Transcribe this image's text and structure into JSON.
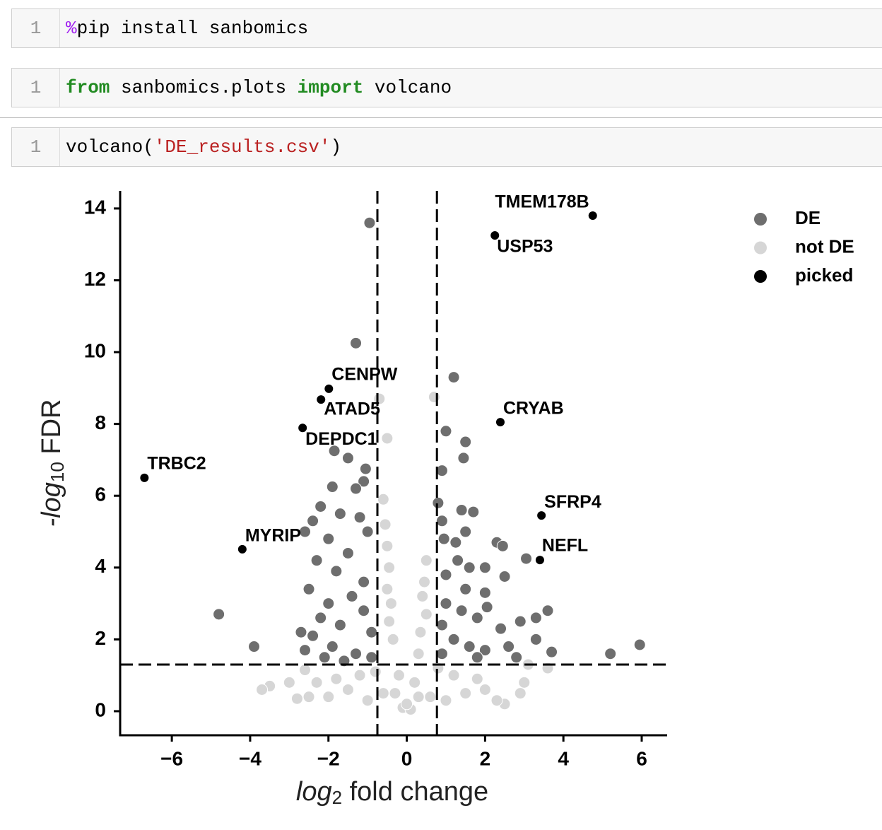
{
  "cells": [
    {
      "line_number": 1,
      "tokens": [
        {
          "text": "%",
          "style": "magic"
        },
        {
          "text": "pip install sanbomics",
          "style": "plain"
        }
      ]
    },
    {
      "line_number": 1,
      "tokens": [
        {
          "text": "from",
          "style": "keyword"
        },
        {
          "text": " sanbomics.plots ",
          "style": "plain"
        },
        {
          "text": "import",
          "style": "keyword"
        },
        {
          "text": " volcano",
          "style": "plain"
        }
      ]
    },
    {
      "line_number": 1,
      "tokens": [
        {
          "text": "volcano(",
          "style": "plain"
        },
        {
          "text": "'DE_results.csv'",
          "style": "string"
        },
        {
          "text": ")",
          "style": "plain"
        }
      ]
    }
  ],
  "chart_data": {
    "type": "scatter",
    "xlabel": {
      "prefix": "log",
      "sub": "2",
      "suffix": " fold change"
    },
    "ylabel": {
      "prefix": "-log",
      "sub": "10",
      "suffix": " FDR"
    },
    "xlim": [
      -7.32,
      6.65
    ],
    "ylim": [
      -0.67,
      14.49
    ],
    "xticks": [
      {
        "value": -6,
        "label": "−6"
      },
      {
        "value": -4,
        "label": "−4"
      },
      {
        "value": -2,
        "label": "−2"
      },
      0,
      2,
      4,
      6
    ],
    "yticks": [
      0,
      2,
      4,
      6,
      8,
      10,
      12,
      14
    ],
    "vlines": [
      -0.75,
      0.77
    ],
    "hline": 1.3,
    "legend": "upper right outside",
    "series": [
      {
        "name": "DE",
        "color": "#6e6e6e",
        "x": [
          -0.95,
          -1.3,
          1.2,
          1.0,
          1.5,
          1.45,
          0.9,
          -1.85,
          -1.5,
          -1.05,
          -1.1,
          -1.3,
          -1.9,
          -2.2,
          -2.4,
          -1.7,
          -1.2,
          -1.0,
          -2.6,
          -2.0,
          -1.5,
          -2.3,
          -1.8,
          -1.1,
          -2.5,
          -2.0,
          -1.4,
          -2.2,
          -1.7,
          -1.1,
          -2.4,
          -1.9,
          -1.3,
          -0.9,
          -2.7,
          -2.6,
          -4.8,
          -3.9,
          0.8,
          0.9,
          1.4,
          1.7,
          1.5,
          2.3,
          2.45,
          0.95,
          1.25,
          1.3,
          1.6,
          2.0,
          2.5,
          1.0,
          1.5,
          2.0,
          1.0,
          1.4,
          1.8,
          2.05,
          0.9,
          1.2,
          1.6,
          2.4,
          2.9,
          3.3,
          3.6,
          3.3,
          2.6,
          2.0,
          3.7,
          5.2,
          5.95,
          3.05,
          1.8,
          2.8,
          0.9,
          -0.9,
          -1.6,
          -2.1
        ],
        "values": [
          13.6,
          10.25,
          9.3,
          7.8,
          7.5,
          7.05,
          6.7,
          7.25,
          7.05,
          6.75,
          6.4,
          6.2,
          6.25,
          5.7,
          5.3,
          5.5,
          5.4,
          5.0,
          5.0,
          4.8,
          4.4,
          4.2,
          3.9,
          3.6,
          3.4,
          3.0,
          3.2,
          2.6,
          2.4,
          2.8,
          2.1,
          1.8,
          1.6,
          2.2,
          2.2,
          1.7,
          2.7,
          1.8,
          5.8,
          5.3,
          5.6,
          5.55,
          5.0,
          4.7,
          4.6,
          4.8,
          4.7,
          4.2,
          4.0,
          4.0,
          3.75,
          3.8,
          3.4,
          3.3,
          3.0,
          2.8,
          2.6,
          2.9,
          2.4,
          2.0,
          1.8,
          2.3,
          2.5,
          2.6,
          2.8,
          2.0,
          1.8,
          1.7,
          1.65,
          1.6,
          1.85,
          4.25,
          1.5,
          1.5,
          1.6,
          1.5,
          1.4,
          1.5
        ]
      },
      {
        "name": "not DE",
        "color": "#d6d6d6",
        "x": [
          -0.7,
          0.7,
          -0.5,
          -0.6,
          -0.55,
          -0.5,
          -0.45,
          -0.5,
          -0.4,
          -0.45,
          -0.35,
          0.5,
          0.45,
          0.4,
          0.5,
          0.35,
          0.3,
          -0.2,
          0.2,
          -0.6,
          0.6,
          -1.0,
          1.0,
          -1.5,
          1.5,
          -2.0,
          2.0,
          -2.5,
          2.5,
          -3.0,
          3.0,
          -3.5,
          -3.7,
          -2.8,
          2.9,
          3.6,
          3.1,
          -2.6,
          -0.1,
          0.1,
          -1.2,
          1.2,
          -0.8,
          0.8,
          -1.8,
          1.8,
          2.3,
          -2.3,
          0.0,
          -0.3,
          0.3
        ],
        "values": [
          8.7,
          8.75,
          7.6,
          5.9,
          5.2,
          4.6,
          4.0,
          3.4,
          3.0,
          2.5,
          2.0,
          4.2,
          3.6,
          3.2,
          2.7,
          2.2,
          1.6,
          1.0,
          0.8,
          0.5,
          0.4,
          0.3,
          0.3,
          0.6,
          0.5,
          0.4,
          0.6,
          0.4,
          0.2,
          0.8,
          0.8,
          0.7,
          0.6,
          0.35,
          0.5,
          1.2,
          1.3,
          1.15,
          0.1,
          0.05,
          1.0,
          1.0,
          1.1,
          1.2,
          0.9,
          0.9,
          0.3,
          0.8,
          0.2,
          0.5,
          0.4
        ]
      },
      {
        "name": "picked",
        "color": "#000000",
        "labels": [
          "TRBC2",
          "MYRIP",
          "DEPDC1",
          "ATAD5",
          "CENPW",
          "TMEM178B",
          "USP53",
          "CRYAB",
          "SFRP4",
          "NEFL"
        ],
        "x": [
          -6.7,
          -4.2,
          -2.66,
          -2.19,
          -1.99,
          4.75,
          2.25,
          2.39,
          3.44,
          3.4
        ],
        "values": [
          6.5,
          4.51,
          7.89,
          8.68,
          8.98,
          13.8,
          13.25,
          8.05,
          5.45,
          4.21
        ]
      }
    ]
  }
}
